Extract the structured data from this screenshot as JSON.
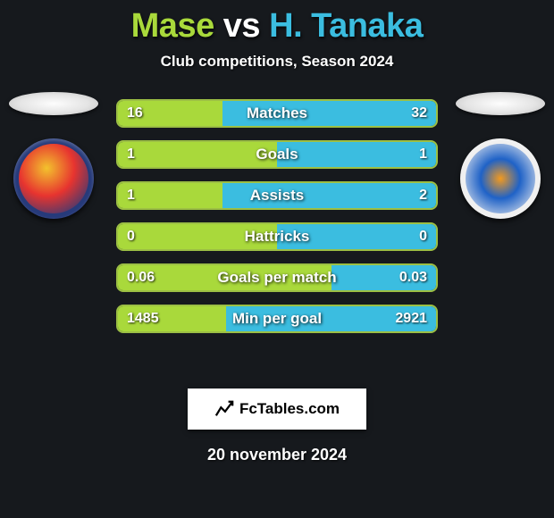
{
  "title": {
    "player1": "Mase",
    "vs": "vs",
    "player2": "H. Tanaka",
    "player1_color": "#a9d93b",
    "player2_color": "#3bbde0"
  },
  "subtitle": "Club competitions, Season 2024",
  "club_left": {
    "name": "Vegalta Sendai",
    "badge_bg": "#263a7a",
    "badge_accent1": "#e7342f",
    "badge_accent2": "#f3c22d"
  },
  "club_right": {
    "name": "V-Varen Nagasaki",
    "badge_bg": "#f0f0f0",
    "badge_accent1": "#1f62c7",
    "badge_accent2": "#f39a1e"
  },
  "bars": {
    "fill_color_left": "#a9d93b",
    "fill_color_right": "#3bbde0",
    "border_color": "#9cbf44",
    "items": [
      {
        "label": "Matches",
        "left_val": "16",
        "right_val": "32",
        "left_pct": 33,
        "right_pct": 67
      },
      {
        "label": "Goals",
        "left_val": "1",
        "right_val": "1",
        "left_pct": 50,
        "right_pct": 50
      },
      {
        "label": "Assists",
        "left_val": "1",
        "right_val": "2",
        "left_pct": 33,
        "right_pct": 67
      },
      {
        "label": "Hattricks",
        "left_val": "0",
        "right_val": "0",
        "left_pct": 50,
        "right_pct": 50
      },
      {
        "label": "Goals per match",
        "left_val": "0.06",
        "right_val": "0.03",
        "left_pct": 67,
        "right_pct": 33
      },
      {
        "label": "Min per goal",
        "left_val": "1485",
        "right_val": "2921",
        "left_pct": 34,
        "right_pct": 66
      }
    ]
  },
  "branding": "FcTables.com",
  "date": "20 november 2024",
  "background_color": "#16191d"
}
